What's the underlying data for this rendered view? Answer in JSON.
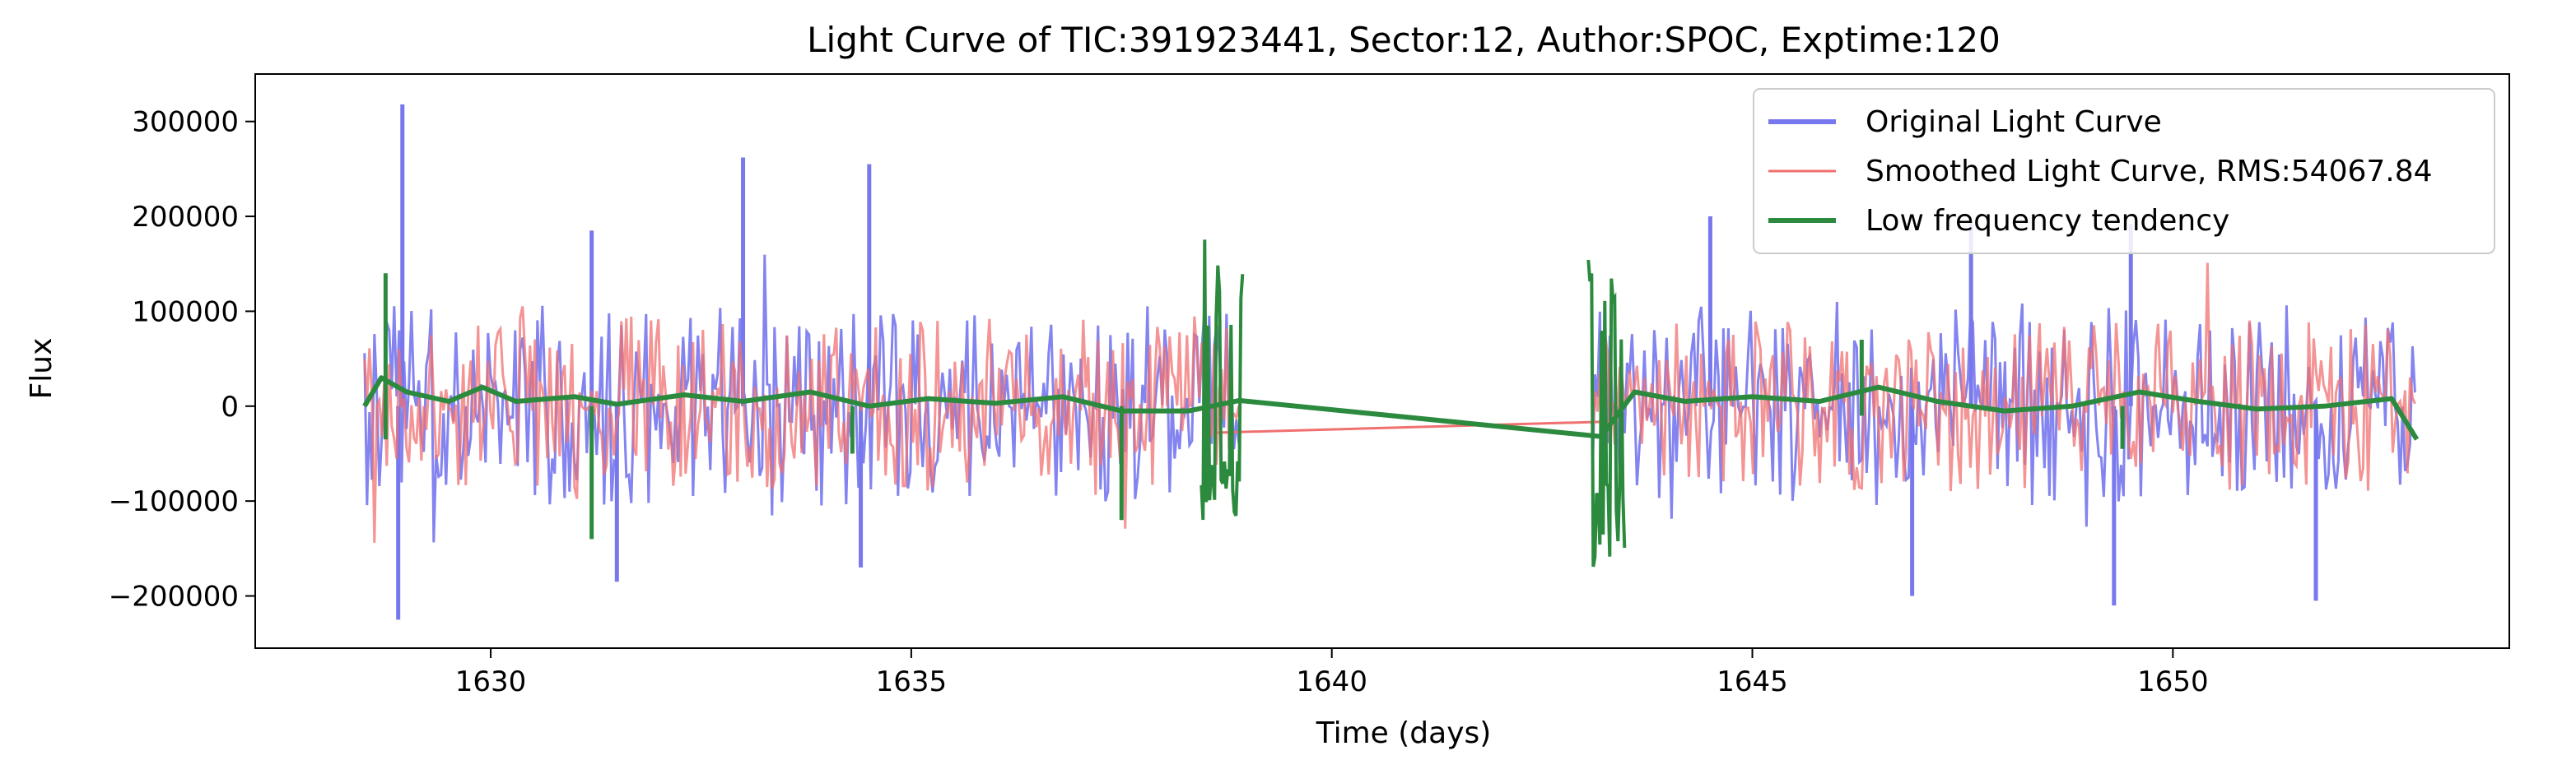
{
  "chart_data": {
    "type": "line",
    "title": "Light Curve of TIC:391923441, Sector:12, Author:SPOC, Exptime:120",
    "xlabel": "Time (days)",
    "ylabel": "Flux",
    "xlim": [
      1627.2,
      1654.0
    ],
    "ylim": [
      -255000,
      350000
    ],
    "x_ticks": [
      1630,
      1635,
      1640,
      1645,
      1650
    ],
    "x_tick_labels": [
      "1630",
      "1635",
      "1640",
      "1645",
      "1650"
    ],
    "y_ticks": [
      300000,
      200000,
      100000,
      0,
      -100000,
      -200000
    ],
    "y_tick_labels": [
      "300000",
      "200000",
      "100000",
      "0",
      "−100000",
      "−200000"
    ],
    "grid": false,
    "legend_position": "top-right",
    "time_segments": [
      [
        1628.5,
        1638.9
      ],
      [
        1643.1,
        1652.9
      ]
    ],
    "series": [
      {
        "name": "Original Light Curve",
        "color": "#7777ee",
        "style": "noisy",
        "typical_range": [
          -105000,
          110000
        ],
        "peaks": [
          [
            1628.95,
            318000
          ],
          [
            1633.0,
            262000
          ],
          [
            1634.5,
            255000
          ],
          [
            1631.2,
            185000
          ],
          [
            1644.5,
            200000
          ],
          [
            1647.6,
            195000
          ],
          [
            1649.5,
            192000
          ]
        ],
        "dips": [
          [
            1628.9,
            -225000
          ],
          [
            1631.5,
            -185000
          ],
          [
            1634.4,
            -170000
          ],
          [
            1646.9,
            -200000
          ],
          [
            1649.3,
            -210000
          ],
          [
            1651.7,
            -205000
          ]
        ]
      },
      {
        "name": "Smoothed Light Curve, RMS:54067.84",
        "color": "#f07070",
        "style": "noisy",
        "typical_range": [
          -95000,
          100000
        ],
        "gap_line": [
          [
            1638.6,
            -28000
          ],
          [
            1643.4,
            -16000
          ]
        ]
      },
      {
        "name": "Low frequency tendency",
        "color": "#2b8a3e",
        "style": "trend",
        "points": [
          [
            1628.5,
            0
          ],
          [
            1628.7,
            30000
          ],
          [
            1629.0,
            15000
          ],
          [
            1629.5,
            5000
          ],
          [
            1629.9,
            20000
          ],
          [
            1630.3,
            5000
          ],
          [
            1631.0,
            10000
          ],
          [
            1631.5,
            2000
          ],
          [
            1632.3,
            12000
          ],
          [
            1633.0,
            5000
          ],
          [
            1633.8,
            15000
          ],
          [
            1634.5,
            0
          ],
          [
            1635.2,
            8000
          ],
          [
            1636.0,
            3000
          ],
          [
            1636.8,
            10000
          ],
          [
            1637.5,
            -5000
          ],
          [
            1638.3,
            -5000
          ],
          [
            1638.9,
            6000
          ],
          [
            1643.2,
            -32000
          ],
          [
            1643.6,
            15000
          ],
          [
            1644.2,
            5000
          ],
          [
            1645.0,
            10000
          ],
          [
            1645.8,
            5000
          ],
          [
            1646.5,
            20000
          ],
          [
            1647.2,
            5000
          ],
          [
            1648.0,
            -5000
          ],
          [
            1648.8,
            0
          ],
          [
            1649.6,
            15000
          ],
          [
            1650.3,
            5000
          ],
          [
            1651.0,
            -3000
          ],
          [
            1651.8,
            0
          ],
          [
            1652.6,
            8000
          ],
          [
            1652.9,
            -35000
          ]
        ],
        "spikes": [
          [
            1628.75,
            140000,
            -35000
          ],
          [
            1631.2,
            0,
            -140000
          ],
          [
            1634.3,
            0,
            -50000
          ],
          [
            1637.5,
            0,
            -120000
          ],
          [
            1646.3,
            70000,
            -10000
          ],
          [
            1649.4,
            0,
            -45000
          ]
        ],
        "burst_windows": [
          [
            1638.45,
            1638.95,
            180000,
            -120000
          ],
          [
            1643.05,
            1643.5,
            165000,
            -190000
          ]
        ]
      }
    ]
  }
}
